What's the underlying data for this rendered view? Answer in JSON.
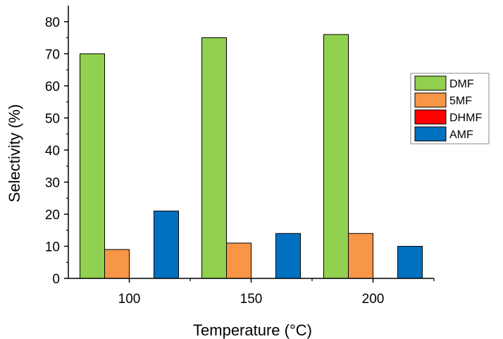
{
  "chart_data": {
    "type": "bar",
    "title": "",
    "xlabel": "Temperature (°C)",
    "ylabel": "Selectivity (%)",
    "categories": [
      "100",
      "150",
      "200"
    ],
    "ylim": [
      0,
      85
    ],
    "yticks": [
      0,
      10,
      20,
      30,
      40,
      50,
      60,
      70,
      80
    ],
    "grid": false,
    "legend_position": "right",
    "series": [
      {
        "name": "DMF",
        "color": "#92d050",
        "values": [
          70,
          75,
          76
        ]
      },
      {
        "name": "5MF",
        "color": "#f79646",
        "values": [
          9,
          11,
          14
        ]
      },
      {
        "name": "DHMF",
        "color": "#ff0000",
        "values": [
          0,
          0,
          0
        ]
      },
      {
        "name": "AMF",
        "color": "#0070c0",
        "values": [
          21,
          14,
          10
        ]
      }
    ]
  }
}
